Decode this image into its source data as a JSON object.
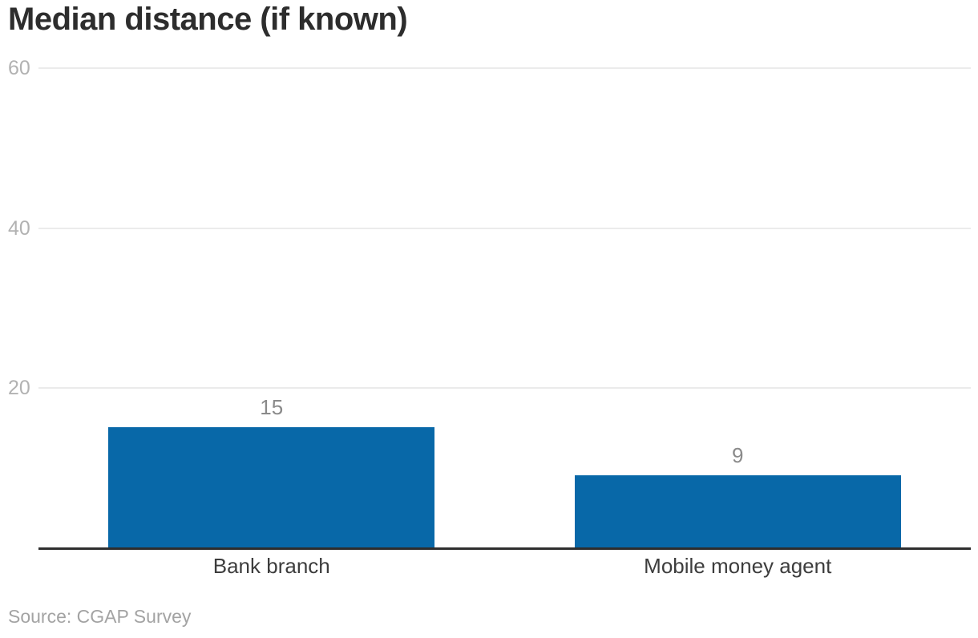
{
  "chart_data": {
    "type": "bar",
    "title": "Median distance (if known)",
    "categories": [
      "Bank branch",
      "Mobile money agent"
    ],
    "values": [
      15,
      9
    ],
    "value_labels": [
      "15",
      "9"
    ],
    "yticks": [
      20,
      40,
      60
    ],
    "ytick_labels": [
      "20",
      "40",
      "60"
    ],
    "ylim": [
      0,
      60
    ],
    "grid": true,
    "legend": "none",
    "xlabel": "",
    "ylabel": "",
    "source": "Source: CGAP Survey",
    "colors": {
      "bar": "#0868a8",
      "title": "#2d2d2d",
      "tick_label": "#b2b2b2",
      "gridline": "#ebebeb",
      "axis_line": "#2e2e2e",
      "value_label": "#8a8a8a",
      "category_label": "#3d3d3d",
      "source": "#a3a3a3"
    }
  }
}
